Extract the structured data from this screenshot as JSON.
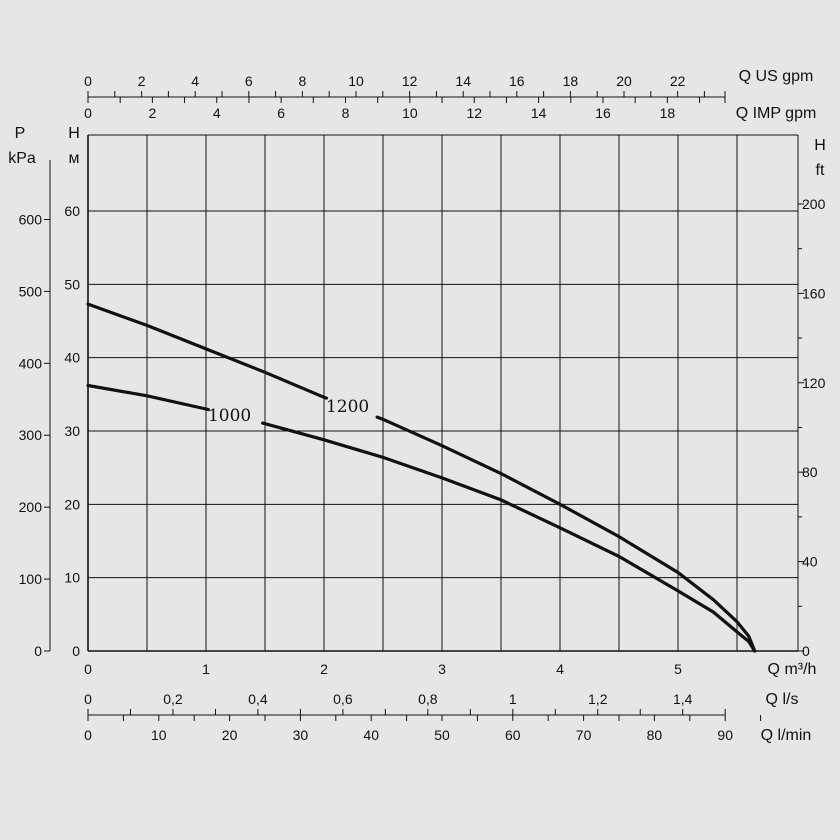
{
  "chart_data": {
    "type": "line",
    "background": "#e6e6e6",
    "line_color": "#111111",
    "grid": true,
    "units": {
      "left_pressure": [
        "P",
        "kPa"
      ],
      "left_head": [
        "H",
        "м"
      ],
      "right_head": [
        "H",
        "ft"
      ],
      "x_main": "Q m³/h",
      "x_ls": "Q l/s",
      "x_lmin": "Q l/min",
      "top_us": "Q US gpm",
      "top_imp": "Q IMP gpm"
    },
    "xlim": [
      0,
      5.75
    ],
    "ylim": [
      0,
      70
    ],
    "x_ticks": [
      "0",
      "1",
      "2",
      "3",
      "4",
      "5"
    ],
    "y_head_ticks": [
      "0",
      "10",
      "20",
      "30",
      "40",
      "50",
      "60"
    ],
    "y_pressure_ticks": [
      "0",
      "100",
      "200",
      "300",
      "400",
      "500",
      "600"
    ],
    "y_ft_ticks": [
      "0",
      "40",
      "80",
      "120",
      "160",
      "200"
    ],
    "ls_ticks": [
      "0",
      "0,2",
      "0,4",
      "0,6",
      "0,8",
      "1",
      "1,2",
      "1,4"
    ],
    "lmin_ticks": [
      "0",
      "10",
      "20",
      "30",
      "40",
      "50",
      "60",
      "70",
      "80",
      "90"
    ],
    "us_gpm_ticks": [
      "0",
      "2",
      "4",
      "6",
      "8",
      "10",
      "12",
      "14",
      "16",
      "18",
      "20",
      "22"
    ],
    "imp_gpm_ticks": [
      "0",
      "2",
      "4",
      "6",
      "8",
      "10",
      "12",
      "14",
      "16",
      "18"
    ],
    "series": [
      {
        "name": "1200",
        "x": [
          0,
          0.5,
          1.0,
          1.5,
          2.0,
          2.5,
          3.0,
          3.5,
          4.0,
          4.5,
          5.0,
          5.3,
          5.5,
          5.6,
          5.65
        ],
        "y": [
          47.3,
          44.4,
          41.2,
          38.0,
          34.6,
          31.6,
          28.0,
          24.2,
          20.0,
          15.6,
          10.7,
          7.0,
          4.0,
          2.0,
          0
        ],
        "label_at": 2.2,
        "label_gap": [
          2.02,
          2.45
        ]
      },
      {
        "name": "1000",
        "x": [
          0,
          0.5,
          1.0,
          1.5,
          2.0,
          2.5,
          3.0,
          3.5,
          4.0,
          4.5,
          5.0,
          5.3,
          5.5,
          5.6,
          5.65
        ],
        "y": [
          36.2,
          34.8,
          33.0,
          31.0,
          28.8,
          26.4,
          23.6,
          20.6,
          16.8,
          12.9,
          8.2,
          5.3,
          2.6,
          1.3,
          0
        ],
        "label_at": 1.2,
        "label_gap": [
          1.02,
          1.48
        ]
      }
    ]
  }
}
